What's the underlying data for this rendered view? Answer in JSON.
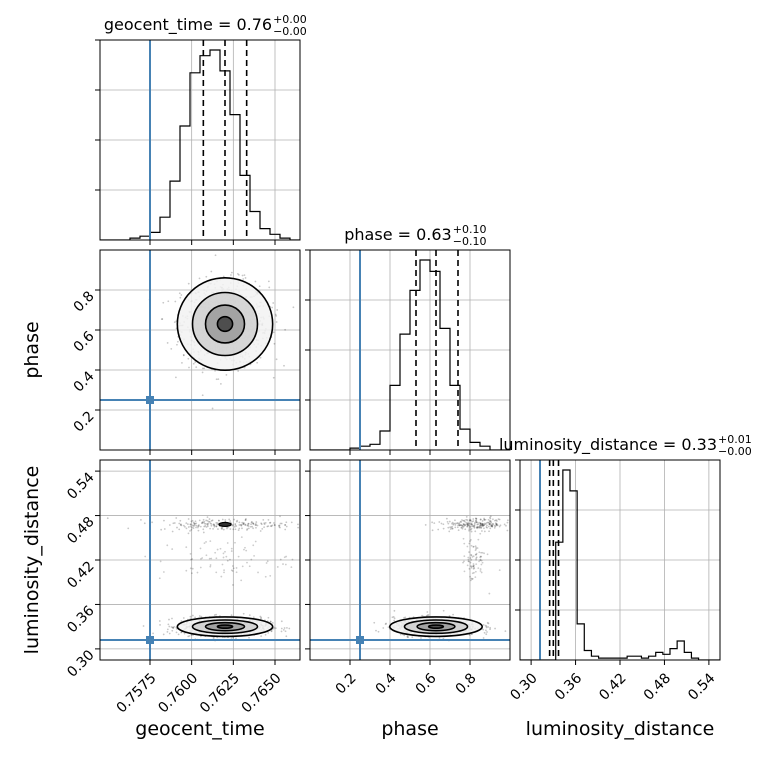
{
  "chart_data": {
    "type": "corner",
    "parameters": [
      "geocent_time",
      "phase",
      "luminosity_distance"
    ],
    "labels": {
      "geocent_time": "geocent_time",
      "phase": "phase",
      "luminosity_distance": "luminosity_distance"
    },
    "titles": [
      {
        "param": "geocent_time",
        "prefix": "geocent_time = ",
        "median": "0.76",
        "plus": "+0.00",
        "minus": "−0.00"
      },
      {
        "param": "phase",
        "prefix": "phase = ",
        "median": "0.63",
        "plus": "+0.10",
        "minus": "−0.10"
      },
      {
        "param": "luminosity_distance",
        "prefix": "luminosity_distance = ",
        "median": "0.33",
        "plus": "+0.01",
        "minus": "−0.00"
      }
    ],
    "ranges": {
      "geocent_time": [
        0.7545,
        0.7665
      ],
      "phase": [
        0.0,
        1.0
      ],
      "luminosity_distance": [
        0.285,
        0.555
      ]
    },
    "ticks": {
      "geocent_time": [
        "0.7575",
        "0.7600",
        "0.7625",
        "0.7650"
      ],
      "phase": [
        "0.2",
        "0.4",
        "0.6",
        "0.8"
      ],
      "luminosity_distance": [
        "0.30",
        "0.36",
        "0.42",
        "0.48",
        "0.54"
      ]
    },
    "truths": {
      "geocent_time": 0.7575,
      "phase": 0.25,
      "luminosity_distance": 0.312
    },
    "quantiles": {
      "geocent_time": [
        0.7607,
        0.762,
        0.7633
      ],
      "phase": [
        0.53,
        0.63,
        0.74
      ],
      "luminosity_distance": [
        0.325,
        0.33,
        0.337
      ]
    },
    "hist1d": {
      "geocent_time": {
        "edges_range": [
          0.7545,
          0.7665
        ],
        "counts": [
          0,
          0,
          0,
          0.01,
          0.02,
          0.04,
          0.12,
          0.31,
          0.6,
          0.88,
          0.97,
          1.0,
          0.89,
          0.66,
          0.34,
          0.15,
          0.06,
          0.03,
          0.01,
          0
        ]
      },
      "phase": {
        "edges_range": [
          0.0,
          1.0
        ],
        "counts": [
          0,
          0,
          0,
          0,
          0.01,
          0.02,
          0.03,
          0.1,
          0.34,
          0.61,
          0.84,
          1.0,
          0.94,
          0.64,
          0.34,
          0.11,
          0.04,
          0.02,
          0,
          0
        ]
      },
      "luminosity_distance": {
        "edges_range": [
          0.285,
          0.555
        ],
        "counts": [
          0,
          0,
          0,
          0,
          0,
          0.62,
          1.0,
          0.89,
          0.19,
          0.05,
          0.02,
          0.01,
          0.01,
          0.01,
          0.01,
          0.02,
          0.02,
          0.01,
          0.02,
          0.04,
          0.03,
          0.06,
          0.1,
          0.04,
          0.01,
          0,
          0,
          0
        ]
      }
    },
    "grid": true
  }
}
